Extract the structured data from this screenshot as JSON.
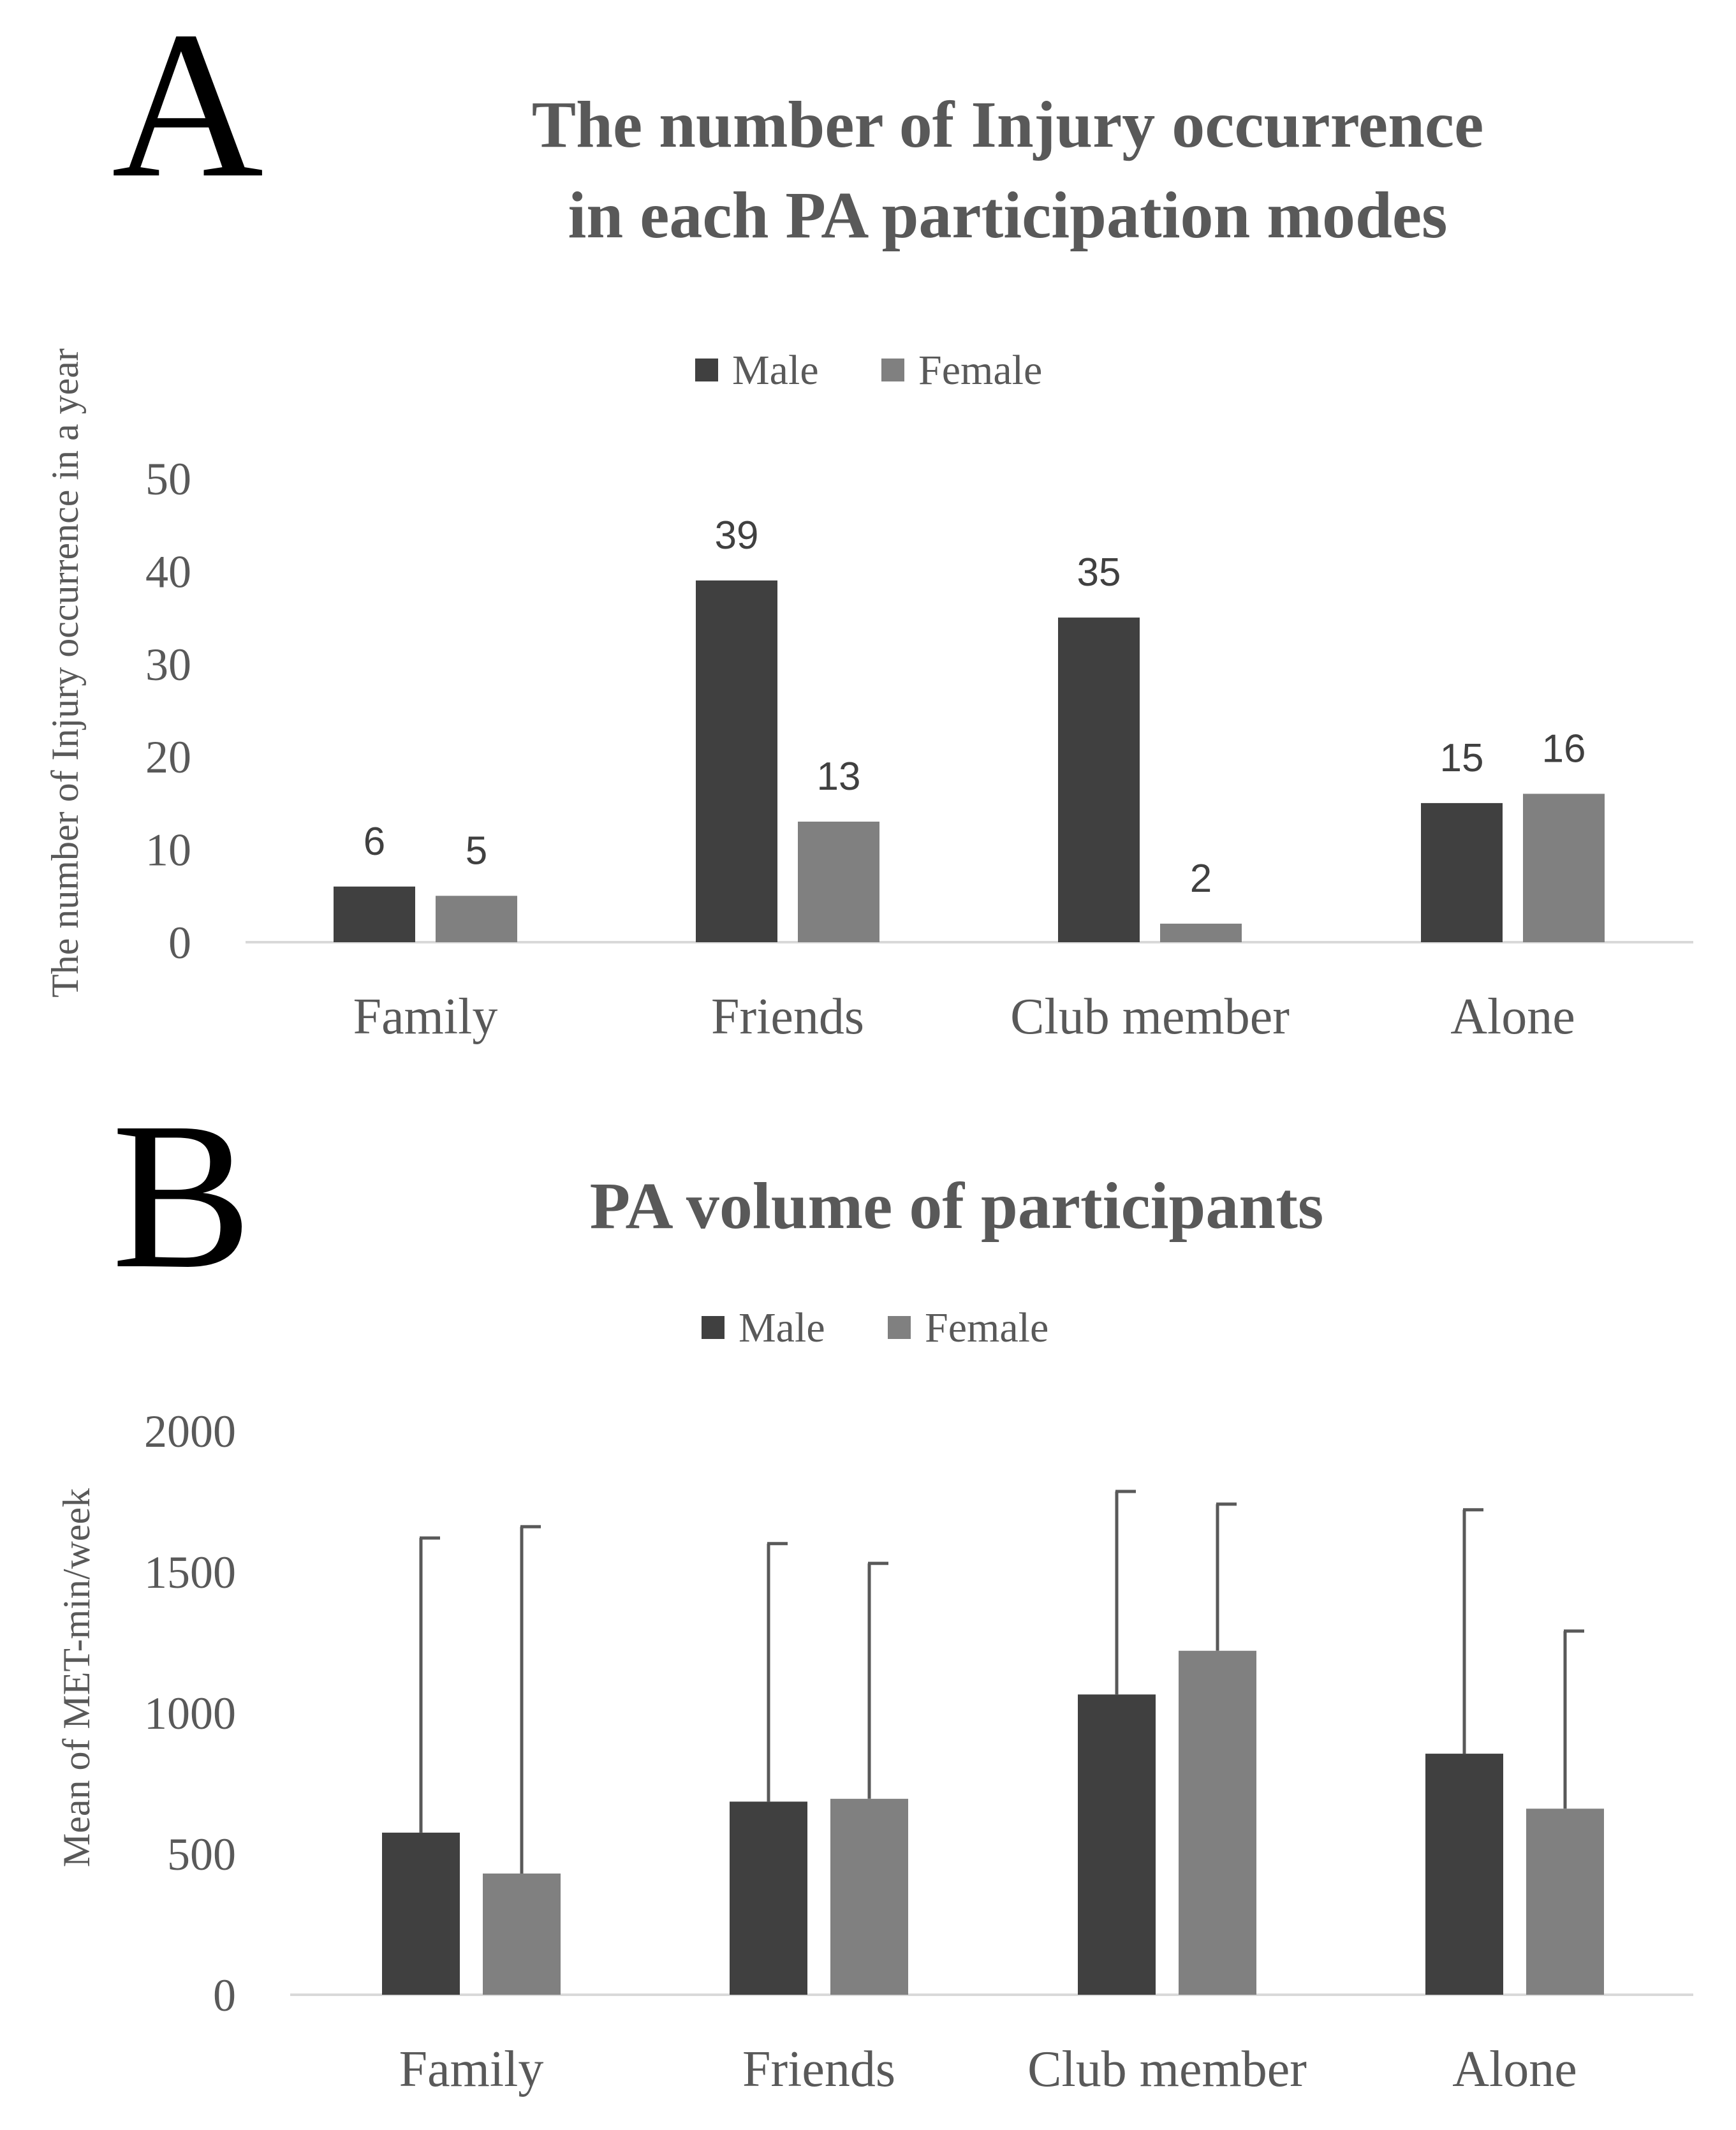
{
  "panels": {
    "a_letter": "A",
    "b_letter": "B"
  },
  "colors": {
    "male": "#404040",
    "female": "#808080",
    "axis": "#d9d9d9",
    "error_bar": "#595959"
  },
  "chart_data": [
    {
      "type": "bar",
      "title_lines": [
        "The number of Injury occurrence",
        "in each PA participation modes"
      ],
      "ylabel": "The number of Injury occurrence in a year",
      "xlabel": "",
      "categories": [
        "Family",
        "Friends",
        "Club member",
        "Alone"
      ],
      "series": [
        {
          "name": "Male",
          "values": [
            6,
            39,
            35,
            15
          ]
        },
        {
          "name": "Female",
          "values": [
            5,
            13,
            2,
            16
          ]
        }
      ],
      "ylim": [
        0,
        50
      ],
      "yticks": [
        0,
        10,
        20,
        30,
        40,
        50
      ],
      "data_labels": true,
      "legend": "top-center",
      "grid": false
    },
    {
      "type": "bar",
      "title_lines": [
        "PA volume of participants"
      ],
      "ylabel": "Mean of MET-min/week",
      "xlabel": "",
      "categories": [
        "Family",
        "Friends",
        "Club member",
        "Alone"
      ],
      "series": [
        {
          "name": "Male",
          "values": [
            575,
            685,
            1065,
            855
          ],
          "error_upper": [
            1620,
            1600,
            1785,
            1720
          ]
        },
        {
          "name": "Female",
          "values": [
            430,
            695,
            1220,
            660
          ],
          "error_upper": [
            1660,
            1530,
            1740,
            1290
          ]
        }
      ],
      "ylim": [
        0,
        2000
      ],
      "yticks": [
        0,
        500,
        1000,
        1500,
        2000
      ],
      "data_labels": false,
      "legend": "top-center",
      "grid": false
    }
  ]
}
